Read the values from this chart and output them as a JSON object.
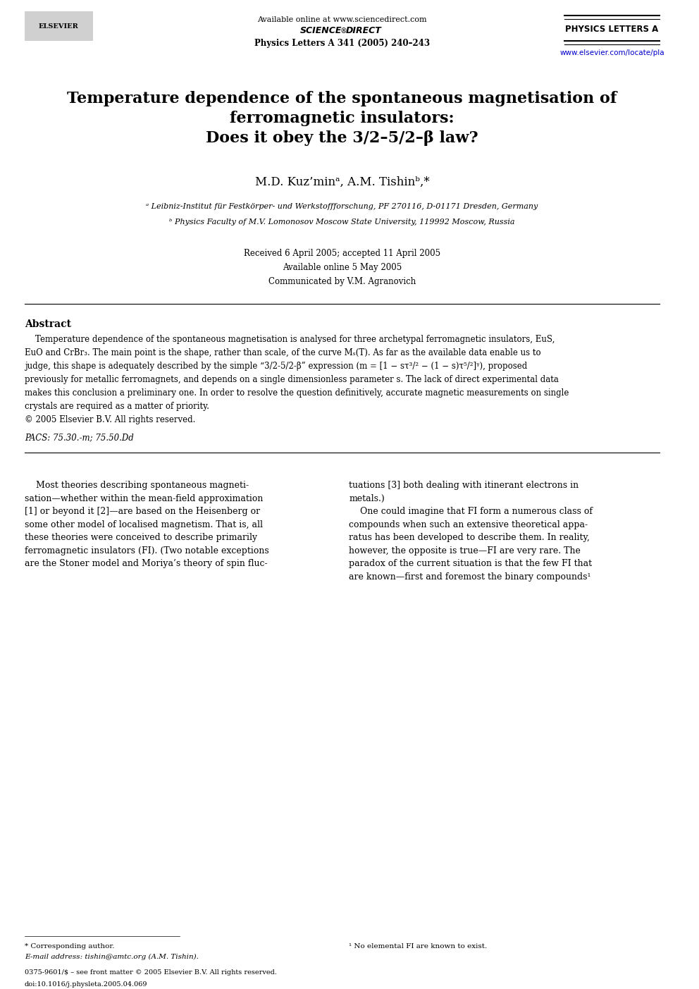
{
  "page_width": 9.92,
  "page_height": 14.03,
  "background_color": "#ffffff",
  "header": {
    "available_online": "Available online at www.sciencedirect.com",
    "journal_name": "PHYSICS LETTERS A",
    "journal_ref": "Physics Letters A 341 (2005) 240–243",
    "url": "www.elsevier.com/locate/pla"
  },
  "title_lines": [
    "Temperature dependence of the spontaneous magnetisation of",
    "ferromagnetic insulators:",
    "Does it obey the 3/2–5/2–β law?"
  ],
  "authors": "M.D. Kuz’minᵃ, A.M. Tishinᵇ,*",
  "affiliations": [
    "ᵃ Leibniz-Institut für Festkörper- und Werkstoffforschung, PF 270116, D-01171 Dresden, Germany",
    "ᵇ Physics Faculty of M.V. Lomonosov Moscow State University, 119992 Moscow, Russia"
  ],
  "dates": [
    "Received 6 April 2005; accepted 11 April 2005",
    "Available online 5 May 2005",
    "Communicated by V.M. Agranovich"
  ],
  "abstract_title": "Abstract",
  "abstract_text": "Temperature dependence of the spontaneous magnetisation is analysed for three archetypal ferromagnetic insulators, EuS, EuO and CrBr₃. The main point is the shape, rather than scale, of the curve Mₛ(T). As far as the available data enable us to judge, this shape is adequately described by the simple “3/2-5/2-β” expression (m = [1 − sτ³ᐟ² − (1 − s)τ⁵ᐟ²]ᵞ), proposed previously for metallic ferromagnets, and depends on a single dimensionless parameter s. The lack of direct experimental data makes this conclusion a preliminary one. In order to resolve the question definitively, accurate magnetic measurements on single crystals are required as a matter of priority.\n© 2005 Elsevier B.V. All rights reserved.",
  "pacs": "PACS: 75.30.-m; 75.50.Dd",
  "body_left": "Most theories describing spontaneous magneti-sation—whether within the mean-field approximation [1] or beyond it [2]—are based on the Heisenberg or some other model of localised magnetism. That is, all these theories were conceived to describe primarily ferromagnetic insulators (FI). (Two notable exceptions are the Stoner model and Moriya’s theory of spin fluc-",
  "body_right": "tuations [3] both dealing with itinerant electrons in metals.)\n    One could imagine that FI form a numerous class of compounds when such an extensive theoretical apparatus has been developed to describe them. In reality, however, the opposite is true—FI are very rare. The paradox of the current situation is that the few FI that are known—first and foremost the binary compounds¹",
  "footnote_star": "* Corresponding author.",
  "footnote_email": "E-mail address: tishin@amtc.org (A.M. Tishin).",
  "footnote_1": "¹ No elemental FI are known to exist.",
  "footer": "0375-9601/$ – see front matter © 2005 Elsevier B.V. All rights reserved.\ndoi:10.1016/j.physleta.2005.04.069"
}
